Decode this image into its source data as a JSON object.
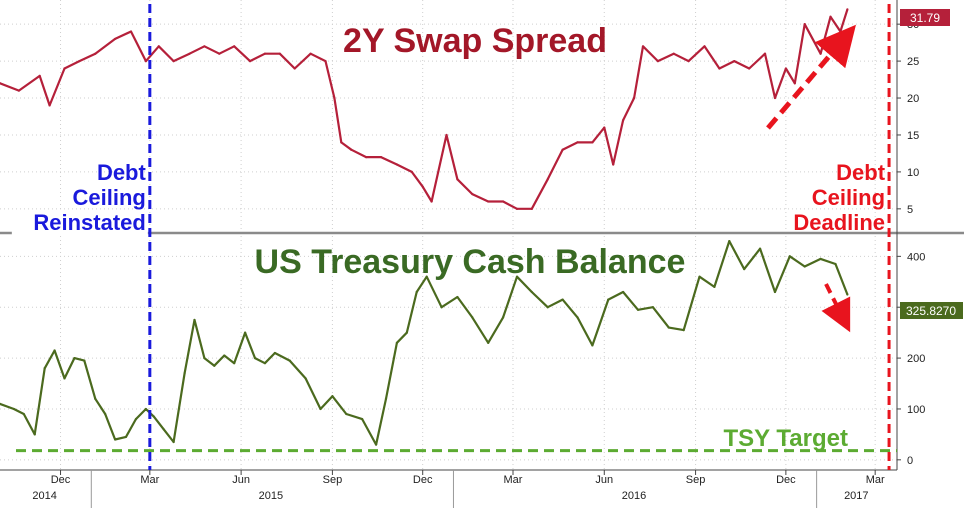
{
  "chart_data": [
    {
      "type": "line",
      "title": "2Y Swap Spread",
      "title_color": "#a31728",
      "series": [
        {
          "color": "#b5203a",
          "x": [
            "2014-10-01",
            "2014-10-20",
            "2014-11-10",
            "2014-11-20",
            "2014-12-05",
            "2014-12-20",
            "2015-01-05",
            "2015-01-25",
            "2015-02-10",
            "2015-02-25",
            "2015-03-10",
            "2015-03-25",
            "2015-04-10",
            "2015-04-25",
            "2015-05-10",
            "2015-05-25",
            "2015-06-10",
            "2015-06-25",
            "2015-07-10",
            "2015-07-25",
            "2015-08-10",
            "2015-08-25",
            "2015-09-03",
            "2015-09-10",
            "2015-09-20",
            "2015-10-05",
            "2015-10-20",
            "2015-11-05",
            "2015-11-20",
            "2015-12-01",
            "2015-12-10",
            "2015-12-25",
            "2016-01-05",
            "2016-01-20",
            "2016-02-05",
            "2016-02-20",
            "2016-03-05",
            "2016-03-20",
            "2016-04-05",
            "2016-04-20",
            "2016-05-05",
            "2016-05-20",
            "2016-06-01",
            "2016-06-10",
            "2016-06-20",
            "2016-07-01",
            "2016-07-10",
            "2016-07-25",
            "2016-08-10",
            "2016-08-25",
            "2016-09-10",
            "2016-09-25",
            "2016-10-10",
            "2016-10-25",
            "2016-11-10",
            "2016-11-20",
            "2016-12-01",
            "2016-12-10",
            "2016-12-20",
            "2017-01-05",
            "2017-01-15",
            "2017-01-25",
            "2017-02-01"
          ],
          "values": [
            22,
            21,
            23,
            19,
            24,
            25,
            26,
            28,
            29,
            25,
            27,
            25,
            26,
            27,
            26,
            27,
            25,
            26,
            26,
            24,
            26,
            25,
            20,
            14,
            13,
            12,
            12,
            11,
            10,
            8,
            6,
            15,
            9,
            7,
            6,
            6,
            5,
            5,
            9,
            13,
            14,
            14,
            16,
            11,
            17,
            20,
            27,
            25,
            26,
            25,
            27,
            24,
            25,
            24,
            26,
            20,
            24,
            22,
            30,
            26,
            31,
            29,
            32
          ]
        }
      ],
      "ylim": [
        2,
        33
      ],
      "yticks": [
        5,
        10,
        15,
        20,
        25,
        30
      ],
      "last_value_label": "31.79",
      "annotation_color": "#e8141e"
    },
    {
      "type": "line",
      "title": "US Treasury Cash Balance",
      "title_color": "#3a6a24",
      "series": [
        {
          "color": "#4b6a1e",
          "x": [
            "2014-10-01",
            "2014-10-15",
            "2014-10-25",
            "2014-11-05",
            "2014-11-15",
            "2014-11-25",
            "2014-12-05",
            "2014-12-15",
            "2014-12-25",
            "2015-01-05",
            "2015-01-15",
            "2015-01-25",
            "2015-02-05",
            "2015-02-15",
            "2015-02-25",
            "2015-03-05",
            "2015-03-15",
            "2015-03-25",
            "2015-04-05",
            "2015-04-15",
            "2015-04-25",
            "2015-05-05",
            "2015-05-15",
            "2015-05-25",
            "2015-06-05",
            "2015-06-15",
            "2015-06-25",
            "2015-07-05",
            "2015-07-20",
            "2015-08-05",
            "2015-08-20",
            "2015-09-01",
            "2015-09-15",
            "2015-10-01",
            "2015-10-15",
            "2015-10-25",
            "2015-11-05",
            "2015-11-15",
            "2015-11-25",
            "2015-12-05",
            "2015-12-20",
            "2016-01-05",
            "2016-01-20",
            "2016-02-05",
            "2016-02-20",
            "2016-03-05",
            "2016-03-20",
            "2016-04-05",
            "2016-04-20",
            "2016-05-05",
            "2016-05-20",
            "2016-06-05",
            "2016-06-20",
            "2016-07-05",
            "2016-07-20",
            "2016-08-05",
            "2016-08-20",
            "2016-09-05",
            "2016-09-20",
            "2016-10-05",
            "2016-10-20",
            "2016-11-05",
            "2016-11-20",
            "2016-12-05",
            "2016-12-20",
            "2017-01-05",
            "2017-01-20",
            "2017-02-01"
          ],
          "values": [
            110,
            100,
            90,
            50,
            180,
            215,
            160,
            200,
            195,
            120,
            90,
            40,
            45,
            80,
            100,
            85,
            60,
            35,
            170,
            275,
            200,
            185,
            205,
            190,
            250,
            200,
            190,
            210,
            195,
            160,
            100,
            125,
            90,
            80,
            30,
            120,
            230,
            250,
            330,
            360,
            300,
            320,
            280,
            230,
            280,
            360,
            330,
            300,
            315,
            280,
            225,
            315,
            330,
            295,
            300,
            260,
            255,
            360,
            340,
            430,
            375,
            415,
            330,
            400,
            380,
            395,
            385,
            325
          ]
        }
      ],
      "ylim": [
        -20,
        440
      ],
      "yticks": [
        0,
        100,
        200,
        300,
        400
      ],
      "last_value_label": "325.8270",
      "target_label": "TSY Target",
      "target_value": 18,
      "target_color": "#5cab32"
    }
  ],
  "x_axis": {
    "months": [
      {
        "date": "2014-12-01",
        "label": "Dec"
      },
      {
        "date": "2015-03-01",
        "label": "Mar"
      },
      {
        "date": "2015-06-01",
        "label": "Jun"
      },
      {
        "date": "2015-09-01",
        "label": "Sep"
      },
      {
        "date": "2015-12-01",
        "label": "Dec"
      },
      {
        "date": "2016-03-01",
        "label": "Mar"
      },
      {
        "date": "2016-06-01",
        "label": "Jun"
      },
      {
        "date": "2016-09-01",
        "label": "Sep"
      },
      {
        "date": "2016-12-01",
        "label": "Dec"
      },
      {
        "date": "2017-03-01",
        "label": "Mar"
      }
    ],
    "years": [
      {
        "date": "2014-11-15",
        "label": "2014"
      },
      {
        "date": "2015-07-01",
        "label": "2015"
      },
      {
        "date": "2016-07-01",
        "label": "2016"
      },
      {
        "date": "2017-02-10",
        "label": "2017"
      }
    ],
    "year_boundaries": [
      "2015-01-01",
      "2016-01-01",
      "2017-01-01"
    ]
  },
  "events": [
    {
      "date": "2015-03-01",
      "lines": [
        "Debt",
        "Ceiling",
        "Reinstated"
      ],
      "color": "#1a1adc"
    },
    {
      "date": "2017-03-15",
      "lines": [
        "Debt",
        "Ceiling",
        "Deadline"
      ],
      "color": "#e8141e"
    }
  ]
}
